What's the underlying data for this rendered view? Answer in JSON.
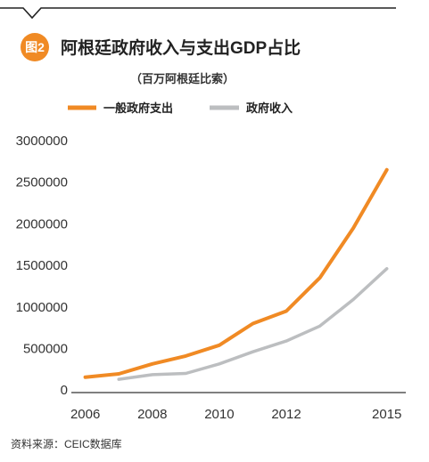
{
  "badge": "图2",
  "chart_data": {
    "type": "line",
    "title": "阿根廷政府收入与支出GDP占比",
    "subtitle": "（百万阿根廷比索）",
    "x": [
      2006,
      2007,
      2008,
      2009,
      2010,
      2011,
      2012,
      2013,
      2014,
      2015
    ],
    "xticks": [
      "2006",
      "2008",
      "2010",
      "2012",
      "2015"
    ],
    "xtick_values": [
      2006,
      2008,
      2010,
      2012,
      2015
    ],
    "yticks": [
      "3000000",
      "2500000",
      "2000000",
      "1500000",
      "1000000",
      "500000",
      "0"
    ],
    "ytick_values": [
      3000000,
      2500000,
      2000000,
      1500000,
      1000000,
      500000,
      0
    ],
    "xlim": [
      2005.85,
      2015.3
    ],
    "ylim": [
      -30000,
      3000000
    ],
    "grid": false,
    "legend_position": "top-left",
    "series": [
      {
        "name": "一般政府支出",
        "color": "#f08a24",
        "points": [
          [
            2006,
            155000
          ],
          [
            2007,
            195000
          ],
          [
            2008,
            315000
          ],
          [
            2009,
            410000
          ],
          [
            2010,
            540000
          ],
          [
            2011,
            800000
          ],
          [
            2012,
            950000
          ],
          [
            2013,
            1350000
          ],
          [
            2014,
            1950000
          ],
          [
            2015,
            2650000
          ]
        ]
      },
      {
        "name": "政府收入",
        "color": "#bcbec0",
        "points": [
          [
            2007,
            130000
          ],
          [
            2008,
            185000
          ],
          [
            2009,
            200000
          ],
          [
            2010,
            315000
          ],
          [
            2011,
            460000
          ],
          [
            2012,
            590000
          ],
          [
            2013,
            770000
          ],
          [
            2014,
            1090000
          ],
          [
            2015,
            1460000
          ]
        ]
      }
    ]
  },
  "source": "资料来源：CEIC数据库"
}
